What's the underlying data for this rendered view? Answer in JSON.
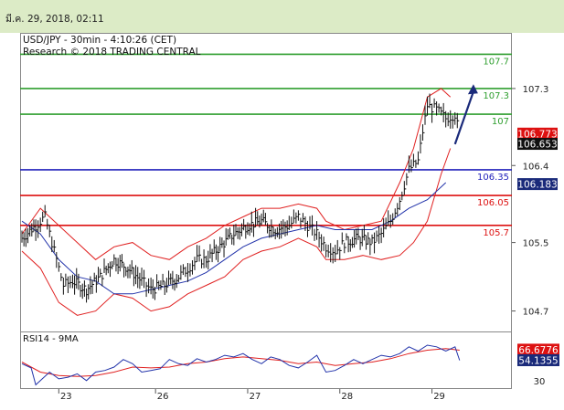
{
  "header": {
    "date": "มี.ค. 29, 2018, 02:11"
  },
  "chart": {
    "title_line1": "USD/JPY - 30min - 4:10:26 (CET)",
    "title_line2": "Research © 2018 TRADING CENTRAL"
  },
  "rsi": {
    "label": "RSI14 - 9MA"
  },
  "colors": {
    "green": "#2e9e2e",
    "blue": "#2222bb",
    "red": "#dd1111",
    "navy": "#1a2a7a",
    "header_bg": "#dcebc6"
  },
  "chart_data": [
    {
      "type": "line",
      "series_kind": "candlestick-with-bollinger",
      "y_ticks": [
        "107.3",
        "106.4",
        "105.5",
        "104.7"
      ],
      "x_ticks": [
        "23",
        "26",
        "27",
        "28",
        "29"
      ],
      "levels": [
        {
          "label": "107.7",
          "value": 107.7,
          "color": "green"
        },
        {
          "label": "107.3",
          "value": 107.3,
          "color": "green"
        },
        {
          "label": "107",
          "value": 107.0,
          "color": "green"
        },
        {
          "label": "106.35",
          "value": 106.35,
          "color": "blue"
        },
        {
          "label": "106.05",
          "value": 106.05,
          "color": "red"
        },
        {
          "label": "105.7",
          "value": 105.7,
          "color": "red"
        }
      ],
      "price_tags": [
        {
          "label": "106.773",
          "value": 106.773,
          "color": "red"
        },
        {
          "label": "106.653",
          "value": 106.653,
          "color": "black"
        },
        {
          "label": "106.183",
          "value": 106.183,
          "color": "navy"
        }
      ],
      "price_path": [
        [
          0,
          105.55
        ],
        [
          3,
          105.7
        ],
        [
          5,
          105.8
        ],
        [
          7,
          105.4
        ],
        [
          9,
          105.0
        ],
        [
          11,
          105.05
        ],
        [
          14,
          104.95
        ],
        [
          17,
          105.1
        ],
        [
          20,
          105.3
        ],
        [
          23,
          105.2
        ],
        [
          26,
          105.05
        ],
        [
          28,
          104.95
        ],
        [
          31,
          105.0
        ],
        [
          34,
          105.1
        ],
        [
          36,
          105.2
        ],
        [
          38,
          105.3
        ],
        [
          40,
          105.3
        ],
        [
          43,
          105.45
        ],
        [
          46,
          105.6
        ],
        [
          49,
          105.7
        ],
        [
          52,
          105.75
        ],
        [
          55,
          105.65
        ],
        [
          58,
          105.7
        ],
        [
          60,
          105.8
        ],
        [
          62,
          105.7
        ],
        [
          64,
          105.6
        ],
        [
          66,
          105.45
        ],
        [
          68,
          105.4
        ],
        [
          70,
          105.5
        ],
        [
          73,
          105.55
        ],
        [
          76,
          105.5
        ],
        [
          78,
          105.6
        ],
        [
          80,
          105.75
        ],
        [
          82,
          106.0
        ],
        [
          84,
          106.35
        ],
        [
          86,
          106.45
        ],
        [
          87,
          106.8
        ],
        [
          88,
          107.1
        ],
        [
          90,
          107.05
        ],
        [
          92,
          106.95
        ],
        [
          94,
          107.0
        ],
        [
          95,
          106.75
        ]
      ],
      "bb_upper": [
        [
          0,
          105.6
        ],
        [
          4,
          105.9
        ],
        [
          8,
          105.7
        ],
        [
          12,
          105.5
        ],
        [
          16,
          105.3
        ],
        [
          20,
          105.45
        ],
        [
          24,
          105.5
        ],
        [
          28,
          105.35
        ],
        [
          32,
          105.3
        ],
        [
          36,
          105.45
        ],
        [
          40,
          105.55
        ],
        [
          44,
          105.7
        ],
        [
          48,
          105.8
        ],
        [
          52,
          105.9
        ],
        [
          56,
          105.9
        ],
        [
          60,
          105.95
        ],
        [
          64,
          105.9
        ],
        [
          66,
          105.75
        ],
        [
          70,
          105.65
        ],
        [
          74,
          105.7
        ],
        [
          78,
          105.75
        ],
        [
          82,
          106.2
        ],
        [
          85,
          106.6
        ],
        [
          88,
          107.2
        ],
        [
          91,
          107.3
        ],
        [
          93,
          107.2
        ]
      ],
      "bb_lower": [
        [
          0,
          105.4
        ],
        [
          4,
          105.2
        ],
        [
          8,
          104.8
        ],
        [
          12,
          104.65
        ],
        [
          16,
          104.7
        ],
        [
          20,
          104.9
        ],
        [
          24,
          104.85
        ],
        [
          28,
          104.7
        ],
        [
          32,
          104.75
        ],
        [
          36,
          104.9
        ],
        [
          40,
          105.0
        ],
        [
          44,
          105.1
        ],
        [
          48,
          105.3
        ],
        [
          52,
          105.4
        ],
        [
          56,
          105.45
        ],
        [
          60,
          105.55
        ],
        [
          64,
          105.45
        ],
        [
          66,
          105.3
        ],
        [
          70,
          105.3
        ],
        [
          74,
          105.35
        ],
        [
          78,
          105.3
        ],
        [
          82,
          105.35
        ],
        [
          85,
          105.5
        ],
        [
          88,
          105.75
        ],
        [
          91,
          106.3
        ],
        [
          93,
          106.6
        ]
      ],
      "ma": [
        [
          0,
          105.75
        ],
        [
          4,
          105.6
        ],
        [
          8,
          105.3
        ],
        [
          12,
          105.1
        ],
        [
          16,
          105.05
        ],
        [
          20,
          104.9
        ],
        [
          24,
          104.9
        ],
        [
          28,
          104.95
        ],
        [
          32,
          105.0
        ],
        [
          36,
          105.05
        ],
        [
          40,
          105.15
        ],
        [
          44,
          105.3
        ],
        [
          48,
          105.45
        ],
        [
          52,
          105.55
        ],
        [
          56,
          105.6
        ],
        [
          60,
          105.65
        ],
        [
          64,
          105.7
        ],
        [
          68,
          105.65
        ],
        [
          72,
          105.65
        ],
        [
          76,
          105.65
        ],
        [
          80,
          105.75
        ],
        [
          84,
          105.9
        ],
        [
          88,
          106.0
        ],
        [
          92,
          106.2
        ]
      ],
      "forecast_arrow": {
        "from": [
          94,
          106.65
        ],
        "to": [
          98,
          107.35
        ]
      },
      "x_index_max": 100
    },
    {
      "type": "line",
      "name": "RSI14 - 9MA",
      "y_ticks": [
        "30"
      ],
      "tags": [
        {
          "label": "66.6776",
          "value": 66.6776,
          "color": "red"
        },
        {
          "label": "54.1355",
          "value": 54.1355,
          "color": "navy"
        }
      ],
      "rsi": [
        [
          0,
          50
        ],
        [
          2,
          45
        ],
        [
          3,
          25
        ],
        [
          4,
          30
        ],
        [
          6,
          40
        ],
        [
          8,
          32
        ],
        [
          10,
          34
        ],
        [
          12,
          38
        ],
        [
          14,
          30
        ],
        [
          16,
          40
        ],
        [
          18,
          42
        ],
        [
          20,
          46
        ],
        [
          22,
          55
        ],
        [
          24,
          50
        ],
        [
          26,
          40
        ],
        [
          28,
          42
        ],
        [
          30,
          44
        ],
        [
          32,
          55
        ],
        [
          34,
          50
        ],
        [
          36,
          48
        ],
        [
          38,
          56
        ],
        [
          40,
          52
        ],
        [
          42,
          55
        ],
        [
          44,
          60
        ],
        [
          46,
          58
        ],
        [
          48,
          62
        ],
        [
          50,
          55
        ],
        [
          52,
          50
        ],
        [
          54,
          58
        ],
        [
          56,
          55
        ],
        [
          58,
          48
        ],
        [
          60,
          45
        ],
        [
          62,
          52
        ],
        [
          64,
          60
        ],
        [
          66,
          40
        ],
        [
          68,
          42
        ],
        [
          70,
          48
        ],
        [
          72,
          55
        ],
        [
          74,
          50
        ],
        [
          76,
          55
        ],
        [
          78,
          60
        ],
        [
          80,
          58
        ],
        [
          82,
          62
        ],
        [
          84,
          70
        ],
        [
          86,
          65
        ],
        [
          88,
          72
        ],
        [
          90,
          70
        ],
        [
          92,
          65
        ],
        [
          94,
          70
        ],
        [
          95,
          54
        ]
      ],
      "rsi_ma": [
        [
          0,
          52
        ],
        [
          4,
          40
        ],
        [
          8,
          36
        ],
        [
          12,
          35
        ],
        [
          16,
          36
        ],
        [
          20,
          40
        ],
        [
          24,
          46
        ],
        [
          28,
          45
        ],
        [
          32,
          46
        ],
        [
          36,
          50
        ],
        [
          40,
          52
        ],
        [
          44,
          56
        ],
        [
          48,
          58
        ],
        [
          52,
          56
        ],
        [
          56,
          54
        ],
        [
          60,
          50
        ],
        [
          64,
          52
        ],
        [
          68,
          48
        ],
        [
          72,
          50
        ],
        [
          76,
          52
        ],
        [
          80,
          56
        ],
        [
          84,
          62
        ],
        [
          88,
          66
        ],
        [
          92,
          68
        ],
        [
          95,
          66
        ]
      ],
      "x_index_max": 100
    }
  ]
}
